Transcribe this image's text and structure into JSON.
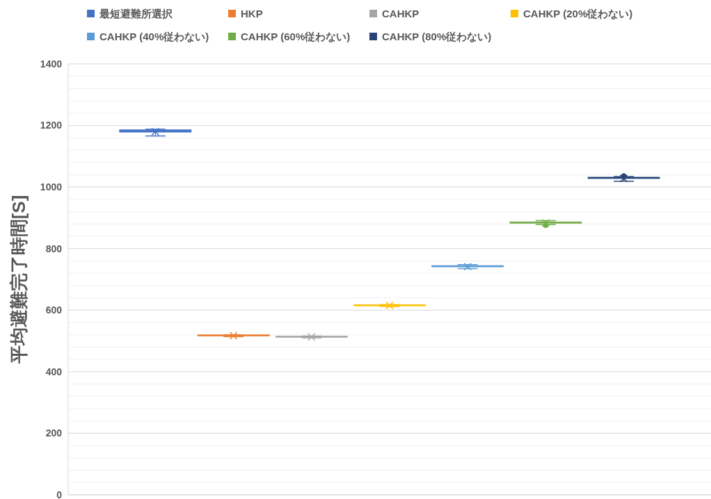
{
  "chart_data": {
    "type": "box",
    "ylabel": "平均避難完了時間[S]",
    "categories": [
      null
    ],
    "ylim": [
      0,
      1400
    ],
    "yticks": [
      0,
      {
        "value": 40,
        "label": null
      },
      {
        "value": 80,
        "label": null
      },
      {
        "value": 120,
        "label": null
      },
      {
        "value": 160,
        "label": null
      },
      200,
      {
        "value": 240,
        "label": null
      },
      {
        "value": 280,
        "label": null
      },
      {
        "value": 320,
        "label": null
      },
      {
        "value": 360,
        "label": null
      },
      400,
      {
        "value": 440,
        "label": null
      },
      {
        "value": 480,
        "label": null
      },
      {
        "value": 520,
        "label": null
      },
      {
        "value": 560,
        "label": null
      },
      600,
      {
        "value": 640,
        "label": null
      },
      {
        "value": 680,
        "label": null
      },
      {
        "value": 720,
        "label": null
      },
      {
        "value": 760,
        "label": null
      },
      800,
      {
        "value": 840,
        "label": null
      },
      {
        "value": 880,
        "label": null
      },
      {
        "value": 920,
        "label": null
      },
      {
        "value": 960,
        "label": null
      },
      1000,
      {
        "value": 1040,
        "label": null
      },
      {
        "value": 1080,
        "label": null
      },
      {
        "value": 1120,
        "label": null
      },
      {
        "value": 1160,
        "label": null
      },
      1200,
      {
        "value": 1240,
        "label": null
      },
      {
        "value": 1280,
        "label": null
      },
      {
        "value": 1320,
        "label": null
      },
      {
        "value": 1360,
        "label": null
      },
      1400
    ],
    "grid": "y",
    "legend": "top",
    "marker": "cross",
    "series": [
      {
        "name": "最短避難所選択",
        "color": "#4472c4",
        "boxes": [
          {
            "low": 1166,
            "q1": 1176,
            "median": 1180,
            "q3": 1184,
            "high": 1188,
            "mean": 1180
          }
        ]
      },
      {
        "name": "HKP",
        "color": "#ed7d31",
        "boxes": [
          {
            "low": 514,
            "q1": 516,
            "median": 517,
            "q3": 518,
            "high": 520,
            "mean": 517
          }
        ]
      },
      {
        "name": "CAHKP",
        "color": "#a5a5a5",
        "boxes": [
          {
            "low": 510,
            "q1": 512,
            "median": 513,
            "q3": 514,
            "high": 516,
            "mean": 513
          }
        ]
      },
      {
        "name": "CAHKP (20%従わない)",
        "color": "#ffc000",
        "boxes": [
          {
            "low": 612,
            "q1": 614,
            "median": 615,
            "q3": 616,
            "high": 618,
            "mean": 615
          }
        ]
      },
      {
        "name": "CAHKP (40%従わない)",
        "color": "#5b9bd5",
        "boxes": [
          {
            "low": 735,
            "q1": 739,
            "median": 741,
            "q3": 743,
            "high": 748,
            "mean": 741
          }
        ]
      },
      {
        "name": "CAHKP (60%従わない)",
        "color": "#70ad47",
        "boxes": [
          {
            "low": 878,
            "q1": 881,
            "median": 883,
            "q3": 885,
            "high": 891,
            "mean": 883,
            "outliers": [
              875
            ]
          }
        ]
      },
      {
        "name": "CAHKP (80%従わない)",
        "color": "#264478",
        "boxes": [
          {
            "low": 1019,
            "q1": 1026,
            "median": 1028,
            "q3": 1030,
            "high": 1034,
            "mean": 1028,
            "outliers": [
              1037
            ]
          }
        ]
      }
    ]
  }
}
